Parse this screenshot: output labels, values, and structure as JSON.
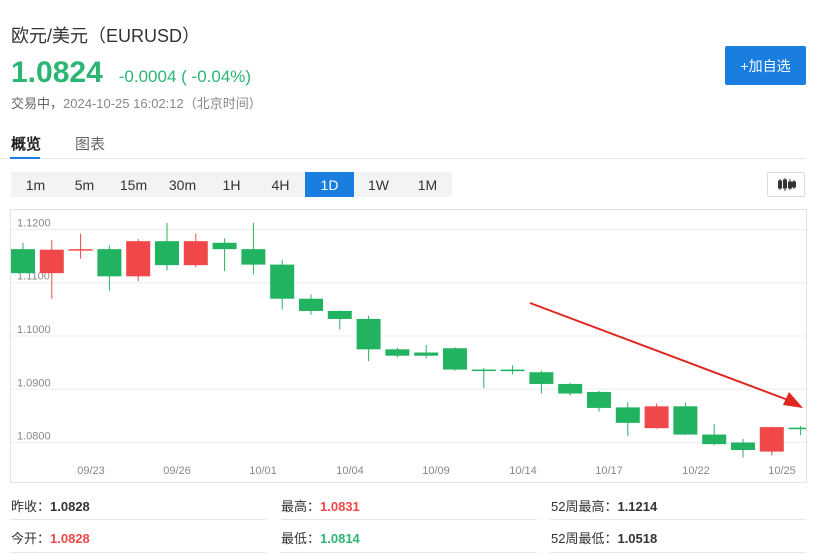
{
  "header": {
    "title": "欧元/美元（EURUSD）",
    "price": "1.0824",
    "change": "-0.0004 ( -0.04%)",
    "status_label": "交易中，",
    "timestamp": "2024-10-25 16:02:12（北京时间）",
    "add_button": "+加自选"
  },
  "tabs": [
    {
      "label": "概览",
      "active": true
    },
    {
      "label": "图表",
      "active": false
    }
  ],
  "periods": [
    {
      "label": "1m",
      "active": false
    },
    {
      "label": "5m",
      "active": false
    },
    {
      "label": "15m",
      "active": false
    },
    {
      "label": "30m",
      "active": false
    },
    {
      "label": "1H",
      "active": false
    },
    {
      "label": "4H",
      "active": false
    },
    {
      "label": "1D",
      "active": true
    },
    {
      "label": "1W",
      "active": false
    },
    {
      "label": "1M",
      "active": false
    }
  ],
  "chart_type_button": "candlestick-icon",
  "colors": {
    "up": "#f04848",
    "down": "#21b35f",
    "accent": "#1a7ee0",
    "arrow": "#e0261f"
  },
  "stats": {
    "prev_close_label": "昨收：",
    "prev_close": "1.0828",
    "high_label": "最高：",
    "high": "1.0831",
    "high52_label": "52周最高：",
    "high52": "1.1214",
    "open_label": "今开：",
    "open": "1.0828",
    "low_label": "最低：",
    "low": "1.0814",
    "low52_label": "52周最低：",
    "low52": "1.0518"
  },
  "chart_data": {
    "type": "candlestick",
    "ylim": [
      1.0771,
      1.1229
    ],
    "yticks": [
      "1.1200",
      "1.1100",
      "1.1000",
      "1.0900",
      "1.0800"
    ],
    "xticks": [
      "09/23",
      "09/26",
      "10/01",
      "10/04",
      "10/09",
      "10/14",
      "10/17",
      "10/22",
      "10/25"
    ],
    "trend_arrow": true,
    "candles": [
      {
        "open": 1.1163,
        "close": 1.1118,
        "high": 1.1175,
        "low": 1.1118
      },
      {
        "open": 1.1118,
        "close": 1.1162,
        "high": 1.118,
        "low": 1.107
      },
      {
        "open": 1.1162,
        "close": 1.1163,
        "high": 1.1192,
        "low": 1.1145
      },
      {
        "open": 1.1163,
        "close": 1.1112,
        "high": 1.117,
        "low": 1.1085
      },
      {
        "open": 1.1112,
        "close": 1.1178,
        "high": 1.1182,
        "low": 1.1103
      },
      {
        "open": 1.1178,
        "close": 1.1133,
        "high": 1.1212,
        "low": 1.1123
      },
      {
        "open": 1.1133,
        "close": 1.1178,
        "high": 1.1192,
        "low": 1.1129
      },
      {
        "open": 1.1175,
        "close": 1.1163,
        "high": 1.1183,
        "low": 1.1122
      },
      {
        "open": 1.1163,
        "close": 1.1134,
        "high": 1.1212,
        "low": 1.1116
      },
      {
        "open": 1.1134,
        "close": 1.107,
        "high": 1.1143,
        "low": 1.105
      },
      {
        "open": 1.107,
        "close": 1.1047,
        "high": 1.1078,
        "low": 1.104
      },
      {
        "open": 1.1047,
        "close": 1.1032,
        "high": 1.1048,
        "low": 1.1012
      },
      {
        "open": 1.1032,
        "close": 1.0975,
        "high": 1.1038,
        "low": 1.0953
      },
      {
        "open": 1.0975,
        "close": 1.0963,
        "high": 1.0978,
        "low": 1.096
      },
      {
        "open": 1.0969,
        "close": 1.0963,
        "high": 1.0983,
        "low": 1.0958
      },
      {
        "open": 1.0977,
        "close": 1.0937,
        "high": 1.0979,
        "low": 1.0935
      },
      {
        "open": 1.0937,
        "close": 1.0935,
        "high": 1.094,
        "low": 1.0902
      },
      {
        "open": 1.0937,
        "close": 1.0934,
        "high": 1.0945,
        "low": 1.0928
      },
      {
        "open": 1.0932,
        "close": 1.091,
        "high": 1.0935,
        "low": 1.0892
      },
      {
        "open": 1.091,
        "close": 1.0892,
        "high": 1.0912,
        "low": 1.0888
      },
      {
        "open": 1.0895,
        "close": 1.0865,
        "high": 1.0897,
        "low": 1.0858
      },
      {
        "open": 1.0866,
        "close": 1.0837,
        "high": 1.0875,
        "low": 1.0812
      },
      {
        "open": 1.0827,
        "close": 1.0868,
        "high": 1.0873,
        "low": 1.0826
      },
      {
        "open": 1.0868,
        "close": 1.0815,
        "high": 1.0875,
        "low": 1.0814
      },
      {
        "open": 1.0815,
        "close": 1.0797,
        "high": 1.0835,
        "low": 1.0795
      },
      {
        "open": 1.08,
        "close": 1.0786,
        "high": 1.0807,
        "low": 1.0772
      },
      {
        "open": 1.0783,
        "close": 1.0829,
        "high": 1.083,
        "low": 1.0776
      },
      {
        "open": 1.0828,
        "close": 1.0825,
        "high": 1.0831,
        "low": 1.0814
      }
    ]
  }
}
